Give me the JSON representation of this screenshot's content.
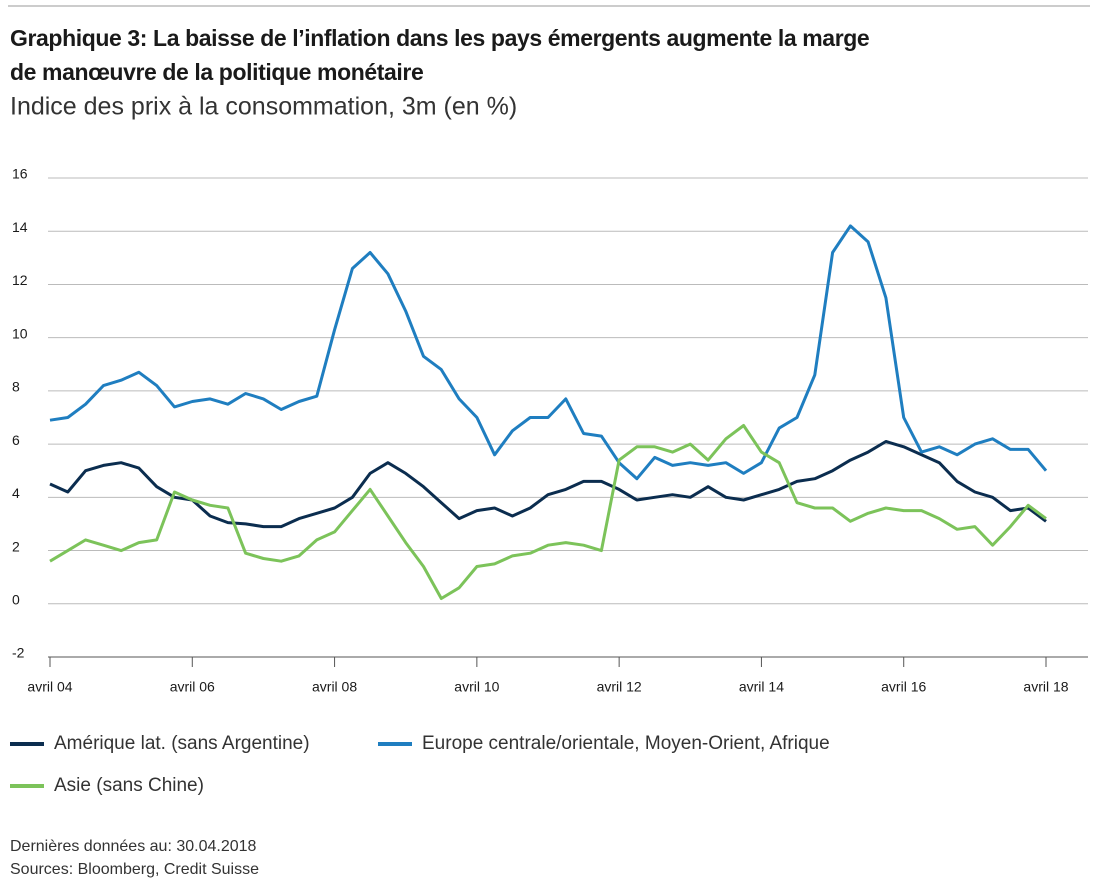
{
  "chart_data": {
    "type": "line",
    "title": "Graphique 3: La baisse de l’inflation dans les pays émergents augmente la marge de manœuvre de la politique monétaire",
    "subtitle": "Indice des prix à la consommation, 3m (en %)",
    "categories": [
      "avril 04",
      null,
      null,
      null,
      null,
      null,
      null,
      null,
      "avril 06",
      null,
      null,
      null,
      null,
      null,
      null,
      null,
      "avril 08",
      null,
      null,
      null,
      null,
      null,
      null,
      null,
      "avril 10",
      null,
      null,
      null,
      null,
      null,
      null,
      null,
      "avril 12",
      null,
      null,
      null,
      null,
      null,
      null,
      null,
      "avril 14",
      null,
      null,
      null,
      null,
      null,
      null,
      null,
      "avril 16",
      null,
      null,
      null,
      null,
      null,
      null,
      null,
      "avril 18"
    ],
    "series": [
      {
        "name": "Amérique lat. (sans Argentine)",
        "color": "#0b2d4f",
        "values": [
          4.5,
          4.2,
          5.0,
          5.2,
          5.3,
          5.1,
          4.4,
          4.0,
          3.9,
          3.3,
          3.05,
          3.0,
          2.9,
          2.9,
          3.2,
          3.4,
          3.6,
          4.0,
          4.9,
          5.3,
          4.9,
          4.4,
          3.8,
          3.2,
          3.5,
          3.6,
          3.3,
          3.6,
          4.1,
          4.3,
          4.6,
          4.6,
          4.3,
          3.9,
          4.0,
          4.1,
          4.0,
          4.4,
          4.0,
          3.9,
          4.1,
          4.3,
          4.6,
          4.7,
          5.0,
          5.4,
          5.7,
          6.1,
          5.9,
          5.6,
          5.3,
          4.6,
          4.2,
          4.0,
          3.5,
          3.6,
          3.1
        ]
      },
      {
        "name": "Europe centrale/orientale, Moyen-Orient, Afrique",
        "color": "#1f7ec0",
        "values": [
          6.9,
          7.0,
          7.5,
          8.2,
          8.4,
          8.7,
          8.2,
          7.4,
          7.6,
          7.7,
          7.5,
          7.9,
          7.7,
          7.3,
          7.6,
          7.8,
          10.3,
          12.6,
          13.2,
          12.4,
          11.0,
          9.3,
          8.8,
          7.7,
          7.0,
          5.6,
          6.5,
          7.0,
          7.0,
          7.7,
          6.4,
          6.3,
          5.3,
          4.7,
          5.5,
          5.2,
          5.3,
          5.2,
          5.3,
          4.9,
          5.3,
          6.6,
          7.0,
          8.6,
          13.2,
          14.2,
          13.6,
          11.5,
          7.0,
          5.7,
          5.9,
          5.6,
          6.0,
          6.2,
          5.8,
          5.8,
          5.0
        ]
      },
      {
        "name": "Asie (sans Chine)",
        "color": "#7cc35a",
        "values": [
          1.6,
          2.0,
          2.4,
          2.2,
          2.0,
          2.3,
          2.4,
          4.2,
          3.9,
          3.7,
          3.6,
          1.9,
          1.7,
          1.6,
          1.8,
          2.4,
          2.7,
          3.5,
          4.3,
          3.3,
          2.3,
          1.4,
          0.2,
          0.6,
          1.4,
          1.5,
          1.8,
          1.9,
          2.2,
          2.3,
          2.2,
          2.0,
          5.4,
          5.9,
          5.9,
          5.7,
          6.0,
          5.4,
          6.2,
          6.7,
          5.7,
          5.3,
          3.8,
          3.6,
          3.6,
          3.1,
          3.4,
          3.6,
          3.5,
          3.5,
          3.2,
          2.8,
          2.9,
          2.2,
          2.9,
          3.7,
          3.2
        ]
      }
    ],
    "ylim": [
      -2,
      16
    ],
    "yticks": [
      -2,
      0,
      2,
      4,
      6,
      8,
      10,
      12,
      14,
      16
    ],
    "grid": true,
    "notes": [
      "Dernières données au: 30.04.2018",
      "Sources: Bloomberg, Credit Suisse"
    ]
  }
}
